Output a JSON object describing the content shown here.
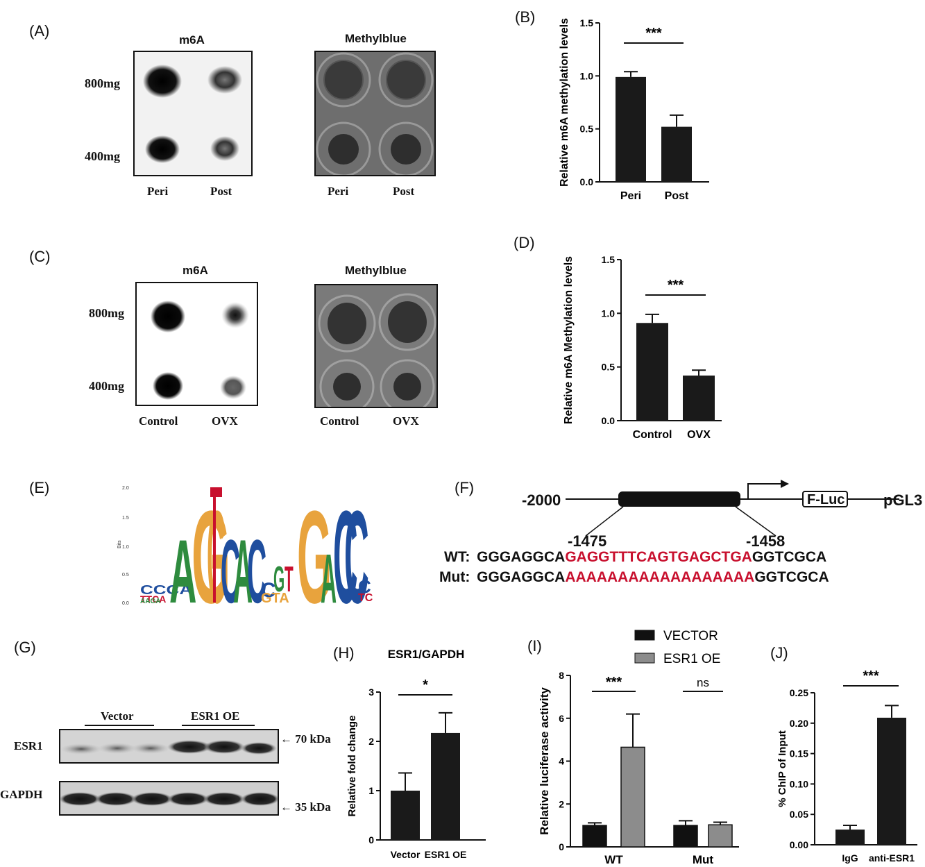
{
  "panels": {
    "A": {
      "label": "(A)",
      "m6a_title": "m6A",
      "methyl_title": "Methylblue",
      "rows": [
        "800mg",
        "400mg"
      ],
      "cols": [
        "Peri",
        "Post"
      ]
    },
    "B": {
      "label": "(B)",
      "chart_data": {
        "type": "bar",
        "categories": [
          "Peri",
          "Post"
        ],
        "values": [
          0.99,
          0.52
        ],
        "errors": [
          0.05,
          0.11
        ],
        "ylabel": "Relative m6A methylation levels",
        "ylim": [
          0,
          1.5
        ],
        "yticks": [
          "0.0",
          "0.5",
          "1.0",
          "1.5"
        ],
        "significance": "***",
        "colors": [
          "#1a1a1a",
          "#1a1a1a"
        ]
      }
    },
    "C": {
      "label": "(C)",
      "m6a_title": "m6A",
      "methyl_title": "Methylblue",
      "rows": [
        "800mg",
        "400mg"
      ],
      "cols": [
        "Control",
        "OVX"
      ]
    },
    "D": {
      "label": "(D)",
      "chart_data": {
        "type": "bar",
        "categories": [
          "Control",
          "OVX"
        ],
        "values": [
          0.91,
          0.42
        ],
        "errors": [
          0.08,
          0.05
        ],
        "ylabel": "Relative m6A  Methylation levels",
        "ylim": [
          0,
          1.5
        ],
        "yticks": [
          "0.0",
          "0.5",
          "1.0",
          "1.5"
        ],
        "significance": "***",
        "colors": [
          "#1a1a1a",
          "#1a1a1a"
        ]
      }
    },
    "E": {
      "label": "(E)",
      "axis_label": "Bits",
      "yticks": [
        "0.0",
        "0.5",
        "1.0",
        "1.5",
        "2.0"
      ]
    },
    "F": {
      "label": "(F)",
      "left_pos": "-2000",
      "reporter": "F-Luc",
      "vector": "pGL3",
      "site_start": "-1475",
      "site_end": "-1458",
      "wt_label": "WT:",
      "wt_prefix": "GGGAGGCA",
      "wt_site": "GAGGTTTCAGTGAGCTGA",
      "wt_suffix": "GGTCGCA",
      "mut_label": "Mut:",
      "mut_prefix": "GGGAGGCA",
      "mut_site": "AAAAAAAAAAAAAAAAAA",
      "mut_suffix": "GGTCGCA",
      "site_color": "#c8102e"
    },
    "G": {
      "label": "(G)",
      "groups": [
        "Vector",
        "ESR1 OE"
      ],
      "rows": [
        "ESR1",
        "GAPDH"
      ],
      "sizes": [
        "70 kDa",
        "35 kDa"
      ],
      "arrow": "←"
    },
    "H": {
      "label": "(H)",
      "chart_data": {
        "type": "bar",
        "title": "ESR1/GAPDH",
        "categories": [
          "Vector",
          "ESR1 OE"
        ],
        "values": [
          1.0,
          2.17
        ],
        "errors": [
          0.36,
          0.41
        ],
        "ylabel": "Relative fold change",
        "ylim": [
          0,
          3
        ],
        "yticks": [
          "0",
          "1",
          "2",
          "3"
        ],
        "significance": "*",
        "colors": [
          "#1a1a1a",
          "#1a1a1a"
        ]
      }
    },
    "I": {
      "label": "(I)",
      "chart_data": {
        "type": "bar",
        "categories": [
          "WT",
          "Mut"
        ],
        "series": [
          {
            "name": "VECTOR",
            "values": [
              1.0,
              1.0
            ],
            "errors": [
              0.12,
              0.22
            ],
            "color": "#111111"
          },
          {
            "name": "ESR1 OE",
            "values": [
              4.65,
              1.03
            ],
            "errors": [
              1.55,
              0.12
            ],
            "color": "#8c8c8c"
          }
        ],
        "ylabel": "Relative  luciferase activity",
        "ylim": [
          0,
          8
        ],
        "yticks": [
          "0",
          "2",
          "4",
          "6",
          "8"
        ],
        "significance": [
          "***",
          "ns"
        ],
        "legend": "top"
      }
    },
    "J": {
      "label": "(J)",
      "chart_data": {
        "type": "bar",
        "categories": [
          "IgG",
          "anti-ESR1"
        ],
        "values": [
          0.025,
          0.209
        ],
        "errors": [
          0.007,
          0.02
        ],
        "ylabel": "% ChIP of Input",
        "ylim": [
          0,
          0.25
        ],
        "yticks": [
          "0.00",
          "0.05",
          "0.10",
          "0.15",
          "0.20",
          "0.25"
        ],
        "significance": "***",
        "colors": [
          "#1a1a1a",
          "#1a1a1a"
        ]
      }
    }
  }
}
